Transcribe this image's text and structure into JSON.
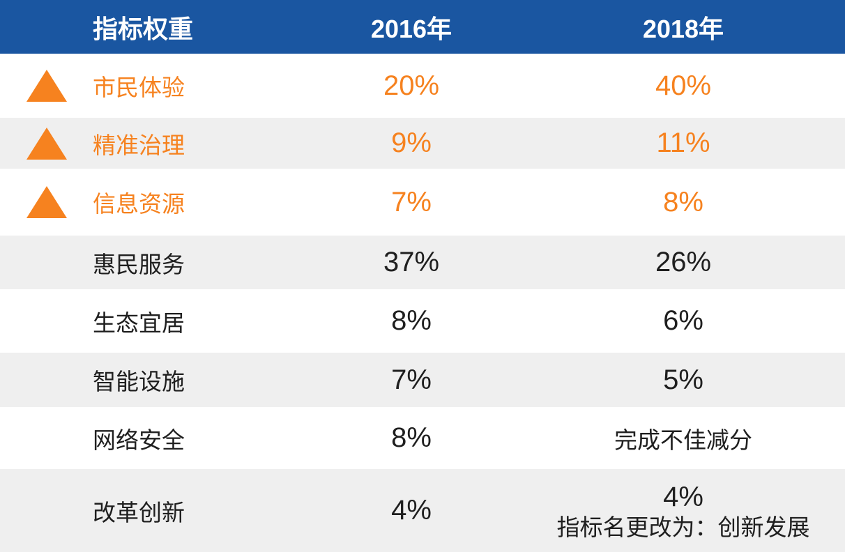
{
  "table": {
    "header": {
      "indicator": "指标权重",
      "year_2016": "2016年",
      "year_2018": "2018年"
    },
    "rows": [
      {
        "label": "市民体验",
        "v2016": "20%",
        "v2018": "40%",
        "highlight": true,
        "trend_icon": "up-triangle"
      },
      {
        "label": "精准治理",
        "v2016": "9%",
        "v2018": "11%",
        "highlight": true,
        "trend_icon": "up-triangle"
      },
      {
        "label": "信息资源",
        "v2016": "7%",
        "v2018": "8%",
        "highlight": true,
        "trend_icon": "up-triangle"
      },
      {
        "label": "惠民服务",
        "v2016": "37%",
        "v2018": "26%",
        "highlight": false
      },
      {
        "label": "生态宜居",
        "v2016": "8%",
        "v2018": "6%",
        "highlight": false
      },
      {
        "label": "智能设施",
        "v2016": "7%",
        "v2018": "5%",
        "highlight": false
      },
      {
        "label": "网络安全",
        "v2016": "8%",
        "v2018": "完成不佳减分",
        "highlight": false
      },
      {
        "label": "改革创新",
        "v2016": "4%",
        "v2018": "4%",
        "v2018_note": "指标名更改为：创新发展",
        "highlight": false
      }
    ],
    "colors": {
      "header_bg": "#1a56a1",
      "header_text": "#ffffff",
      "accent_orange": "#f6821f",
      "row_alt_bg": "#efefef",
      "text_dark": "#1f1f1f"
    }
  },
  "chart_data": {
    "type": "table",
    "title": "指标权重 2016年 vs 2018年",
    "columns": [
      "指标权重",
      "2016年",
      "2018年"
    ],
    "rows": [
      [
        "市民体验",
        "20%",
        "40%"
      ],
      [
        "精准治理",
        "9%",
        "11%"
      ],
      [
        "信息资源",
        "7%",
        "8%"
      ],
      [
        "惠民服务",
        "37%",
        "26%"
      ],
      [
        "生态宜居",
        "8%",
        "6%"
      ],
      [
        "智能设施",
        "7%",
        "5%"
      ],
      [
        "网络安全",
        "8%",
        "完成不佳减分"
      ],
      [
        "改革创新",
        "4%",
        "4% 指标名更改为：创新发展"
      ]
    ],
    "highlighted_rows": [
      "市民体验",
      "精准治理",
      "信息资源"
    ],
    "annotations": "前三行为橙色文字并带橙色上升三角形标记，表示权重上升",
    "legend_position": "none",
    "grid": "off"
  }
}
